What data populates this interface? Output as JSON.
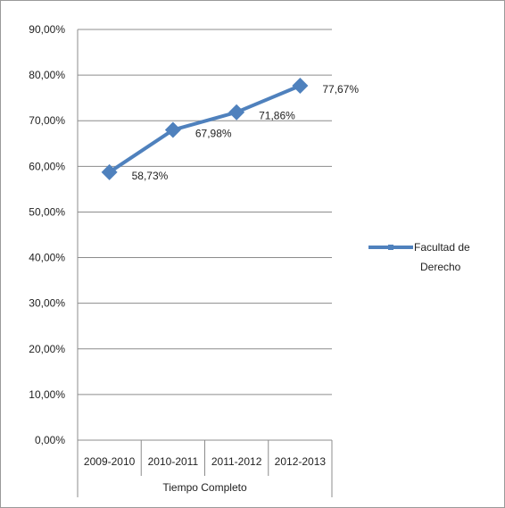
{
  "chart_data": {
    "type": "line",
    "categories": [
      "2009-2010",
      "2010-2011",
      "2011-2012",
      "2012-2013"
    ],
    "series": [
      {
        "name": "Facultad de Derecho",
        "values": [
          58.73,
          67.98,
          71.86,
          77.67
        ],
        "labels": [
          "58,73%",
          "67,98%",
          "71,86%",
          "77,67%"
        ],
        "color": "#4F81BD"
      }
    ],
    "xlabel": "Tiempo Completo",
    "ylabel": "",
    "ylim": [
      0,
      90
    ],
    "yticks": [
      0,
      10,
      20,
      30,
      40,
      50,
      60,
      70,
      80,
      90
    ],
    "ytick_labels": [
      "0,00%",
      "10,00%",
      "20,00%",
      "30,00%",
      "40,00%",
      "50,00%",
      "60,00%",
      "70,00%",
      "80,00%",
      "90,00%"
    ],
    "grid": true,
    "legend_position": "right",
    "legend_lines": [
      "Facultad de",
      "Derecho"
    ]
  }
}
